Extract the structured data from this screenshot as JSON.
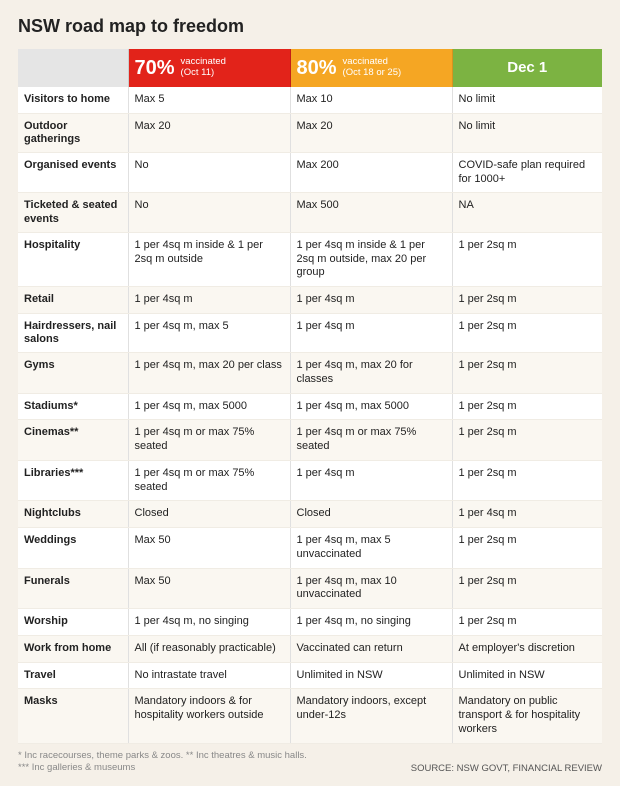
{
  "title": "NSW road map to freedom",
  "colors": {
    "c70_bg": "#e2231a",
    "c80_bg": "#f5a623",
    "dec_bg": "#7cb342",
    "page_bg": "#f5f0e8"
  },
  "headers": {
    "c70": {
      "percent": "70%",
      "sub_line1": "vaccinated",
      "sub_line2": "(Oct 11)"
    },
    "c80": {
      "percent": "80%",
      "sub_line1": "vaccinated",
      "sub_line2": "(Oct 18 or 25)"
    },
    "dec": {
      "label": "Dec 1"
    }
  },
  "rows": [
    {
      "label": "Visitors to home",
      "c70": "Max 5",
      "c80": "Max 10",
      "dec": "No limit"
    },
    {
      "label": "Outdoor gatherings",
      "c70": "Max 20",
      "c80": "Max 20",
      "dec": "No limit"
    },
    {
      "label": "Organised events",
      "c70": "No",
      "c80": "Max 200",
      "dec": "COVID-safe plan required for 1000+"
    },
    {
      "label": "Ticketed & seated events",
      "c70": "No",
      "c80": "Max 500",
      "dec": "NA"
    },
    {
      "label": "Hospitality",
      "c70": "1 per 4sq m inside & 1 per 2sq m outside",
      "c80": "1 per 4sq m inside & 1 per 2sq m outside, max 20 per group",
      "dec": "1 per 2sq m"
    },
    {
      "label": "Retail",
      "c70": "1 per 4sq m",
      "c80": "1 per 4sq m",
      "dec": "1 per 2sq m"
    },
    {
      "label": "Hairdressers, nail salons",
      "c70": "1 per 4sq m, max 5",
      "c80": "1 per 4sq m",
      "dec": "1 per 2sq m"
    },
    {
      "label": "Gyms",
      "c70": "1 per 4sq m, max 20 per class",
      "c80": "1 per 4sq m, max 20 for classes",
      "dec": "1 per 2sq m"
    },
    {
      "label": "Stadiums*",
      "c70": "1 per 4sq m, max 5000",
      "c80": "1 per 4sq m, max 5000",
      "dec": "1 per 2sq m"
    },
    {
      "label": "Cinemas**",
      "c70": "1 per 4sq m or max 75% seated",
      "c80": "1 per 4sq m or max 75% seated",
      "dec": "1 per 2sq m"
    },
    {
      "label": "Libraries***",
      "c70": "1 per 4sq m or max 75% seated",
      "c80": "1 per 4sq m",
      "dec": "1 per 2sq m"
    },
    {
      "label": "Nightclubs",
      "c70": "Closed",
      "c80": "Closed",
      "dec": "1 per 4sq m"
    },
    {
      "label": "Weddings",
      "c70": "Max 50",
      "c80": "1 per 4sq m, max 5 unvaccinated",
      "dec": "1 per 2sq m"
    },
    {
      "label": "Funerals",
      "c70": "Max 50",
      "c80": "1 per 4sq m, max 10 unvaccinated",
      "dec": "1 per 2sq m"
    },
    {
      "label": "Worship",
      "c70": "1 per 4sq m, no singing",
      "c80": "1 per 4sq m, no singing",
      "dec": "1 per 2sq m"
    },
    {
      "label": "Work from home",
      "c70": "All (if reasonably practicable)",
      "c80": "Vaccinated can return",
      "dec": "At employer's discretion"
    },
    {
      "label": "Travel",
      "c70": "No intrastate travel",
      "c80": "Unlimited in NSW",
      "dec": "Unlimited in NSW"
    },
    {
      "label": "Masks",
      "c70": "Mandatory indoors & for hospitality workers outside",
      "c80": "Mandatory indoors, except under-12s",
      "dec": "Mandatory on public transport & for hospitality workers"
    }
  ],
  "footnotes": {
    "line1": "* Inc racecourses, theme parks & zoos. ** Inc theatres & music halls.",
    "line2": "*** Inc galleries & museums",
    "source": "SOURCE: NSW GOVT, FINANCIAL REVIEW"
  }
}
